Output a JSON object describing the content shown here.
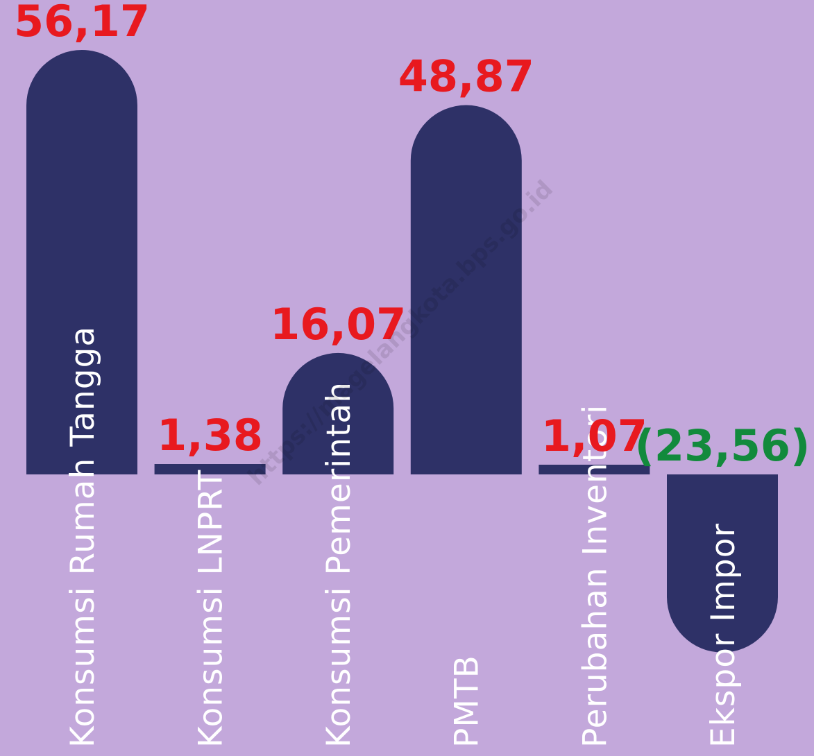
{
  "chart_data": {
    "type": "bar",
    "title": "",
    "xlabel": "",
    "ylabel": "",
    "categories": [
      "Konsumsi Rumah Tangga",
      "Konsumsi LNPRT",
      "Konsumsi Pemerintah",
      "PMTB",
      "Perubahan Inventori",
      "Ekspor Impor"
    ],
    "values": [
      56.17,
      1.38,
      16.07,
      48.87,
      1.07,
      -23.56
    ],
    "value_labels": [
      "56,17",
      "1,38",
      "16,07",
      "48,87",
      "1,07",
      "(23,56)"
    ],
    "ylim": [
      -23.56,
      56.17
    ],
    "grid": false,
    "legend": "none"
  },
  "watermark": "https://magelangkota.bps.go.id",
  "colors": {
    "background": "#c3a8db",
    "bar": "#2e3167",
    "positive_label": "#e8191f",
    "negative_label": "#128a3c",
    "category_label": "#ffffff"
  }
}
